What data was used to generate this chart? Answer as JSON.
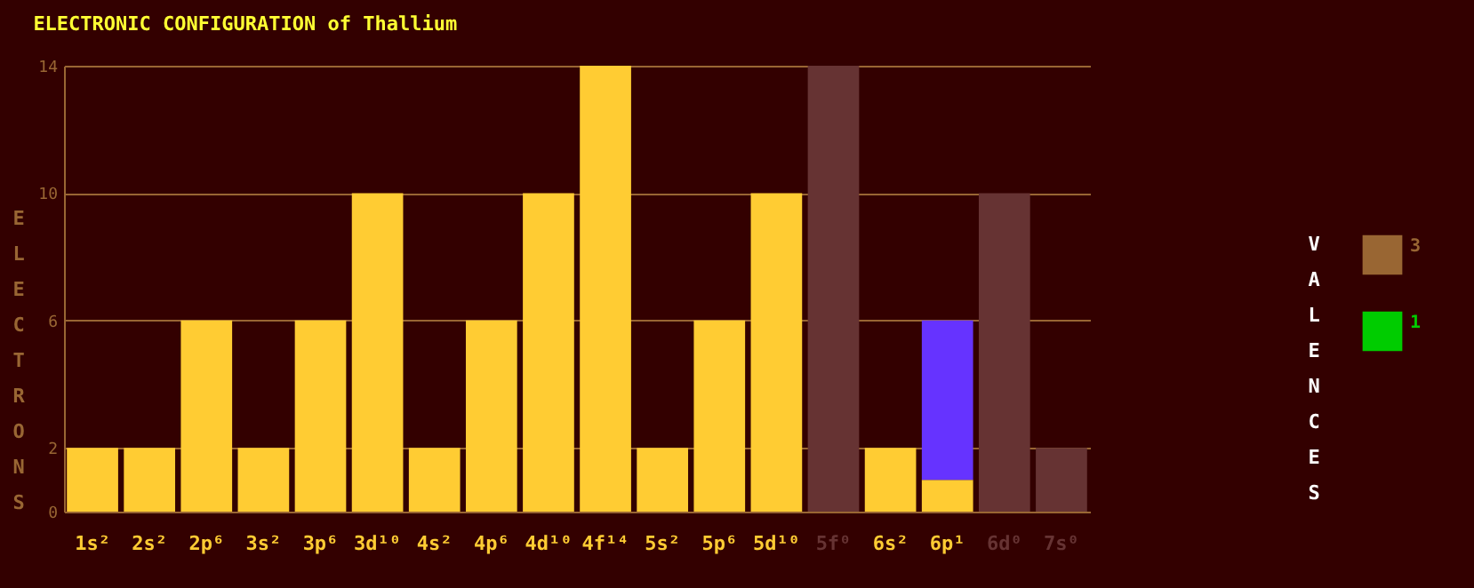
{
  "chart_data": {
    "type": "bar",
    "stacked": true,
    "title": "ELECTRONIC CONFIGURATION of Thallium",
    "ylabel": "ELECTRONS",
    "legend_title": "VALENCES",
    "legend": "right",
    "categories": [
      "1s²",
      "2s²",
      "2p⁶",
      "3s²",
      "3p⁶",
      "3d¹⁰",
      "4s²",
      "4p⁶",
      "4d¹⁰",
      "4f¹⁴",
      "5s²",
      "5p⁶",
      "5d¹⁰",
      "5f⁰",
      "6s²",
      "6p¹",
      "6d⁰",
      "7s⁰"
    ],
    "series": [
      {
        "color": "#ffcc33",
        "values": [
          2,
          2,
          6,
          2,
          6,
          10,
          2,
          6,
          10,
          14,
          2,
          6,
          10,
          0,
          2,
          1,
          0,
          0
        ]
      },
      {
        "color": "#6633ff",
        "values": [
          0,
          0,
          0,
          0,
          0,
          0,
          0,
          0,
          0,
          0,
          0,
          0,
          0,
          0,
          0,
          5,
          0,
          0
        ]
      },
      {
        "color": "#663333",
        "values": [
          0,
          0,
          0,
          0,
          0,
          0,
          0,
          0,
          0,
          0,
          0,
          0,
          0,
          14,
          0,
          0,
          10,
          2
        ]
      },
      {
        "name": "3",
        "color": "#996633",
        "values": [
          null,
          null,
          null,
          null,
          null,
          null,
          null,
          null,
          null,
          null,
          null,
          null,
          null,
          null,
          null,
          null,
          null,
          null
        ]
      },
      {
        "name": "1",
        "color": "#00cc00",
        "values": [
          null,
          null,
          null,
          null,
          null,
          null,
          null,
          null,
          null,
          null,
          null,
          null,
          null,
          null,
          null,
          null,
          null,
          null
        ]
      }
    ],
    "ylim": [
      0,
      14
    ],
    "yticks": [
      0,
      2,
      6,
      10,
      14
    ],
    "grid": "y"
  }
}
